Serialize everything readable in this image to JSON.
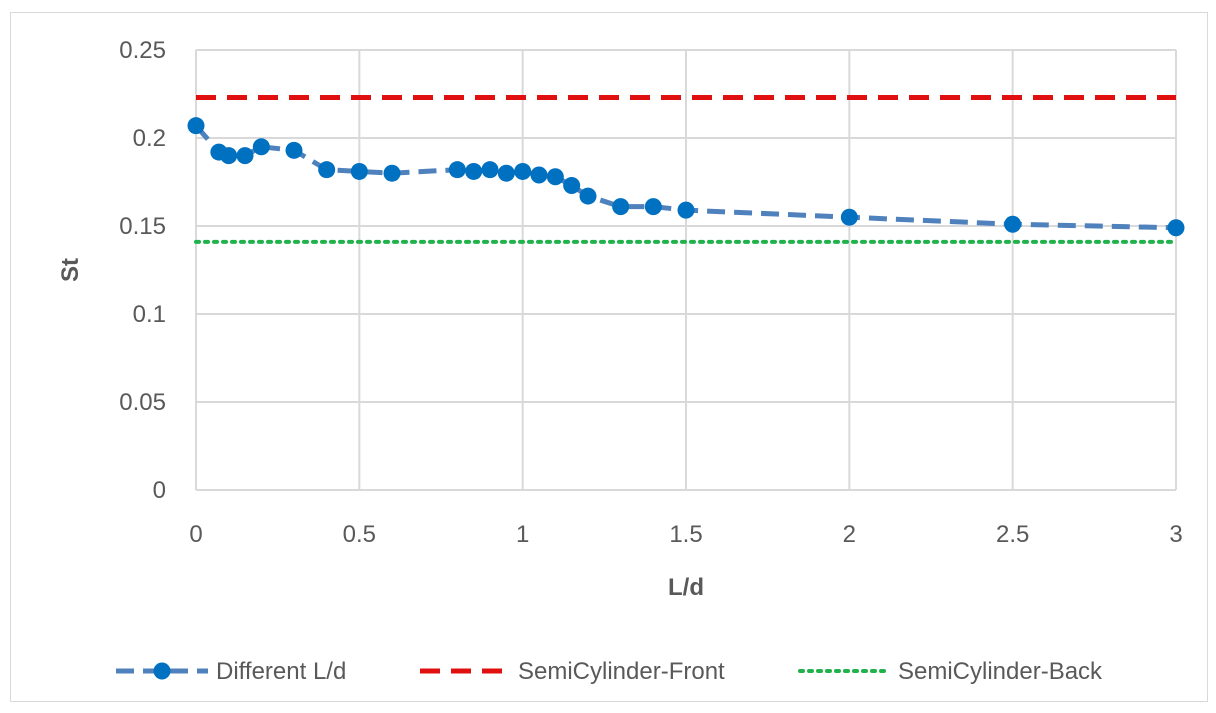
{
  "chart_data": {
    "type": "line",
    "title": "",
    "xlabel": "L/d",
    "ylabel": "St",
    "xlim": [
      0,
      3
    ],
    "ylim": [
      0,
      0.25
    ],
    "x_ticks": [
      "0",
      "0.5",
      "1",
      "1.5",
      "2",
      "2.5",
      "3"
    ],
    "y_ticks": [
      "0",
      "0.05",
      "0.1",
      "0.15",
      "0.2",
      "0.25"
    ],
    "grid": true,
    "legend_position": "bottom",
    "series": [
      {
        "name": "Different L/d",
        "color": "#4f81bd",
        "marker_color": "#0070c0",
        "style": "dashed-with-markers",
        "x": [
          0,
          0.07,
          0.1,
          0.15,
          0.2,
          0.3,
          0.4,
          0.5,
          0.6,
          0.8,
          0.85,
          0.9,
          0.95,
          1.0,
          1.05,
          1.1,
          1.15,
          1.2,
          1.3,
          1.4,
          1.5,
          2.0,
          2.5,
          3.0
        ],
        "y": [
          0.207,
          0.192,
          0.19,
          0.19,
          0.195,
          0.193,
          0.182,
          0.181,
          0.18,
          0.182,
          0.181,
          0.182,
          0.18,
          0.181,
          0.179,
          0.178,
          0.173,
          0.167,
          0.161,
          0.161,
          0.159,
          0.155,
          0.151,
          0.149
        ]
      },
      {
        "name": "SemiCylinder-Front",
        "color": "#e01010",
        "style": "dashed",
        "x": [
          0,
          3
        ],
        "y": [
          0.223,
          0.223
        ]
      },
      {
        "name": "SemiCylinder-Back",
        "color": "#22b24c",
        "style": "dotted",
        "x": [
          0,
          3
        ],
        "y": [
          0.141,
          0.141
        ]
      }
    ]
  }
}
